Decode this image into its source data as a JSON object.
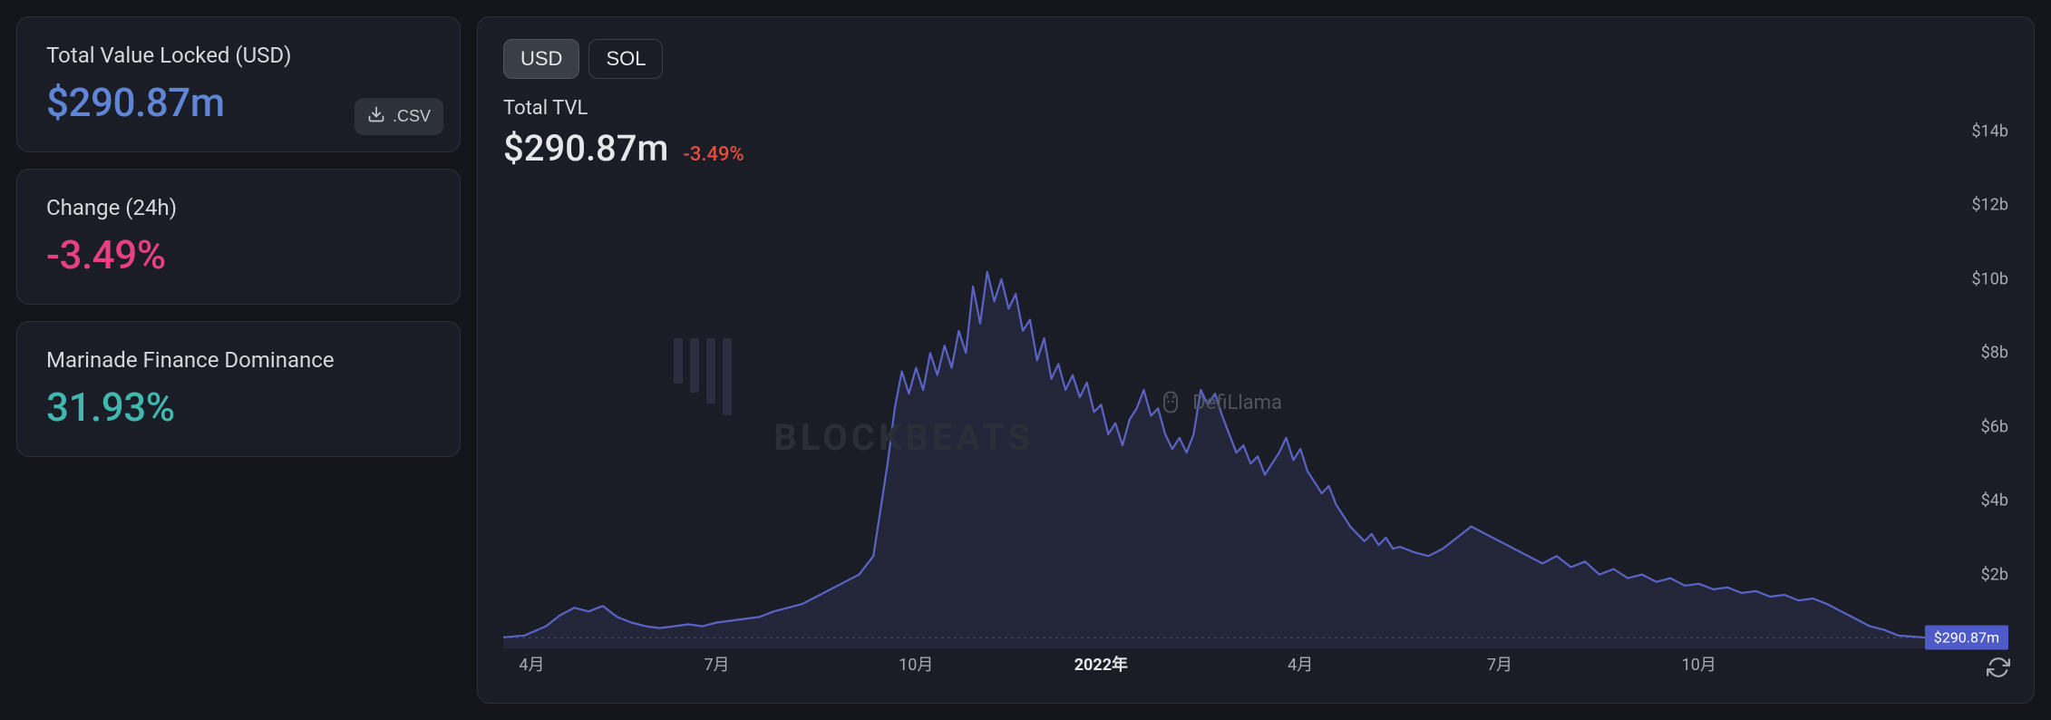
{
  "colors": {
    "bg": "#13151a",
    "card_bg": "#1a1d25",
    "border": "#2d3139",
    "text_primary": "#e5e7eb",
    "text_secondary": "#d4d7db",
    "text_muted": "#a6abb3",
    "tvl_value": "#6085d6",
    "change_negative": "#e64083",
    "dominance_value": "#3fb8b0",
    "chart_line": "#5a63c4",
    "chart_fill": "#2a2e48",
    "badge_bg": "#4d5ac7",
    "change_red": "#e74c3c",
    "tab_active_bg": "#3a3e46"
  },
  "cards": {
    "tvl": {
      "label": "Total Value Locked (USD)",
      "value": "$290.87m",
      "csv_label": ".CSV"
    },
    "change": {
      "label": "Change (24h)",
      "value": "-3.49%"
    },
    "dominance": {
      "label": "Marinade Finance Dominance",
      "value": "31.93%"
    }
  },
  "chart": {
    "tabs": [
      {
        "label": "USD",
        "active": true
      },
      {
        "label": "SOL",
        "active": false
      }
    ],
    "title": "Total TVL",
    "value": "$290.87m",
    "change": "-3.49%",
    "y_axis": {
      "min": 0,
      "max": 14,
      "step": 2,
      "unit": "b",
      "ticks": [
        {
          "label": "$14b",
          "v": 14
        },
        {
          "label": "$12b",
          "v": 12
        },
        {
          "label": "$10b",
          "v": 10
        },
        {
          "label": "$8b",
          "v": 8
        },
        {
          "label": "$6b",
          "v": 6
        },
        {
          "label": "$4b",
          "v": 4
        },
        {
          "label": "$2b",
          "v": 2
        }
      ]
    },
    "x_axis": {
      "ticks": [
        {
          "label": "4月",
          "t": 0.02,
          "bold": false
        },
        {
          "label": "7月",
          "t": 0.15,
          "bold": false
        },
        {
          "label": "10月",
          "t": 0.29,
          "bold": false
        },
        {
          "label": "2022年",
          "t": 0.42,
          "bold": true
        },
        {
          "label": "4月",
          "t": 0.56,
          "bold": false
        },
        {
          "label": "7月",
          "t": 0.7,
          "bold": false
        },
        {
          "label": "10月",
          "t": 0.84,
          "bold": false
        }
      ]
    },
    "current_badge": "$290.87m",
    "current_v": 0.29,
    "data": [
      [
        0.0,
        0.3
      ],
      [
        0.015,
        0.35
      ],
      [
        0.03,
        0.6
      ],
      [
        0.04,
        0.9
      ],
      [
        0.05,
        1.1
      ],
      [
        0.06,
        1.0
      ],
      [
        0.07,
        1.15
      ],
      [
        0.08,
        0.85
      ],
      [
        0.09,
        0.7
      ],
      [
        0.1,
        0.6
      ],
      [
        0.11,
        0.55
      ],
      [
        0.12,
        0.6
      ],
      [
        0.13,
        0.65
      ],
      [
        0.14,
        0.6
      ],
      [
        0.15,
        0.7
      ],
      [
        0.16,
        0.75
      ],
      [
        0.17,
        0.8
      ],
      [
        0.18,
        0.85
      ],
      [
        0.19,
        1.0
      ],
      [
        0.2,
        1.1
      ],
      [
        0.21,
        1.2
      ],
      [
        0.22,
        1.4
      ],
      [
        0.23,
        1.6
      ],
      [
        0.24,
        1.8
      ],
      [
        0.25,
        2.0
      ],
      [
        0.26,
        2.5
      ],
      [
        0.27,
        5.0
      ],
      [
        0.275,
        6.5
      ],
      [
        0.28,
        7.5
      ],
      [
        0.285,
        6.9
      ],
      [
        0.29,
        7.6
      ],
      [
        0.295,
        7.0
      ],
      [
        0.3,
        8.0
      ],
      [
        0.305,
        7.4
      ],
      [
        0.31,
        8.2
      ],
      [
        0.315,
        7.6
      ],
      [
        0.32,
        8.6
      ],
      [
        0.325,
        8.0
      ],
      [
        0.33,
        9.8
      ],
      [
        0.335,
        8.8
      ],
      [
        0.34,
        10.2
      ],
      [
        0.345,
        9.4
      ],
      [
        0.35,
        10.0
      ],
      [
        0.355,
        9.2
      ],
      [
        0.36,
        9.6
      ],
      [
        0.365,
        8.6
      ],
      [
        0.37,
        8.9
      ],
      [
        0.375,
        7.8
      ],
      [
        0.38,
        8.4
      ],
      [
        0.385,
        7.3
      ],
      [
        0.39,
        7.7
      ],
      [
        0.395,
        7.0
      ],
      [
        0.4,
        7.4
      ],
      [
        0.405,
        6.8
      ],
      [
        0.41,
        7.2
      ],
      [
        0.415,
        6.4
      ],
      [
        0.42,
        6.6
      ],
      [
        0.425,
        5.8
      ],
      [
        0.43,
        6.1
      ],
      [
        0.435,
        5.5
      ],
      [
        0.44,
        6.2
      ],
      [
        0.445,
        6.5
      ],
      [
        0.45,
        7.0
      ],
      [
        0.455,
        6.3
      ],
      [
        0.46,
        6.5
      ],
      [
        0.465,
        5.8
      ],
      [
        0.47,
        5.4
      ],
      [
        0.475,
        5.7
      ],
      [
        0.48,
        5.3
      ],
      [
        0.485,
        5.8
      ],
      [
        0.49,
        7.0
      ],
      [
        0.495,
        6.6
      ],
      [
        0.5,
        6.9
      ],
      [
        0.505,
        6.3
      ],
      [
        0.51,
        5.8
      ],
      [
        0.515,
        5.3
      ],
      [
        0.52,
        5.5
      ],
      [
        0.525,
        5.0
      ],
      [
        0.53,
        5.2
      ],
      [
        0.535,
        4.7
      ],
      [
        0.54,
        5.0
      ],
      [
        0.545,
        5.3
      ],
      [
        0.55,
        5.7
      ],
      [
        0.555,
        5.1
      ],
      [
        0.56,
        5.4
      ],
      [
        0.565,
        4.8
      ],
      [
        0.57,
        4.5
      ],
      [
        0.575,
        4.2
      ],
      [
        0.58,
        4.4
      ],
      [
        0.585,
        3.9
      ],
      [
        0.59,
        3.6
      ],
      [
        0.595,
        3.3
      ],
      [
        0.6,
        3.1
      ],
      [
        0.605,
        2.9
      ],
      [
        0.61,
        3.1
      ],
      [
        0.615,
        2.8
      ],
      [
        0.62,
        3.0
      ],
      [
        0.625,
        2.7
      ],
      [
        0.63,
        2.75
      ],
      [
        0.64,
        2.6
      ],
      [
        0.65,
        2.5
      ],
      [
        0.66,
        2.7
      ],
      [
        0.67,
        3.0
      ],
      [
        0.68,
        3.3
      ],
      [
        0.69,
        3.1
      ],
      [
        0.7,
        2.9
      ],
      [
        0.71,
        2.7
      ],
      [
        0.72,
        2.5
      ],
      [
        0.73,
        2.3
      ],
      [
        0.74,
        2.5
      ],
      [
        0.75,
        2.2
      ],
      [
        0.76,
        2.35
      ],
      [
        0.77,
        2.0
      ],
      [
        0.78,
        2.15
      ],
      [
        0.79,
        1.9
      ],
      [
        0.8,
        2.0
      ],
      [
        0.81,
        1.8
      ],
      [
        0.82,
        1.9
      ],
      [
        0.83,
        1.7
      ],
      [
        0.84,
        1.75
      ],
      [
        0.85,
        1.6
      ],
      [
        0.86,
        1.65
      ],
      [
        0.87,
        1.5
      ],
      [
        0.88,
        1.55
      ],
      [
        0.89,
        1.4
      ],
      [
        0.9,
        1.45
      ],
      [
        0.91,
        1.3
      ],
      [
        0.92,
        1.35
      ],
      [
        0.93,
        1.2
      ],
      [
        0.94,
        1.0
      ],
      [
        0.95,
        0.8
      ],
      [
        0.96,
        0.6
      ],
      [
        0.97,
        0.5
      ],
      [
        0.98,
        0.35
      ],
      [
        0.99,
        0.32
      ],
      [
        1.0,
        0.29
      ]
    ],
    "watermark": {
      "defillama": "DefiLlama",
      "blockbeats": "BLOCKBEATS"
    }
  }
}
